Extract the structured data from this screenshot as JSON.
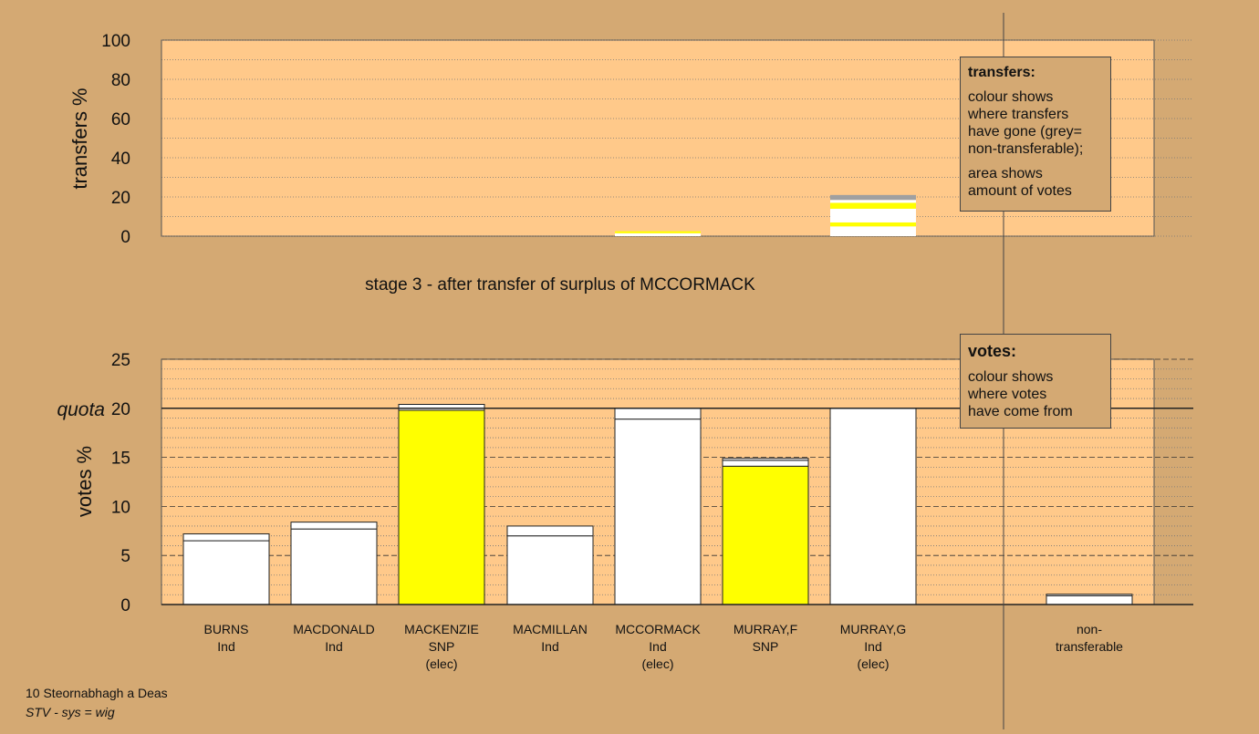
{
  "title": "stage 3 - after transfer of surplus of MCCORMACK",
  "footer": {
    "ward": "10 Steornabhagh a Deas",
    "system": "STV - sys = wig"
  },
  "colors": {
    "background": "#D4A973",
    "plot_bg": "#FFC98A",
    "white": "#FFFFFF",
    "yellow": "#FFFF00",
    "grey": "#A0A0A0"
  },
  "legend_transfers": {
    "title": "transfers:",
    "lines": [
      "colour shows",
      "where transfers",
      "have gone (grey=",
      "non-transferable);"
    ],
    "lines2": [
      "area shows",
      "amount of votes"
    ]
  },
  "legend_votes": {
    "title": "votes:",
    "lines": [
      "colour shows",
      "where votes",
      "have come from"
    ]
  },
  "candidates": [
    {
      "name": "BURNS",
      "party": "Ind",
      "status": ""
    },
    {
      "name": "MACDONALD",
      "party": "Ind",
      "status": ""
    },
    {
      "name": "MACKENZIE",
      "party": "SNP",
      "status": "(elec)"
    },
    {
      "name": "MACMILLAN",
      "party": "Ind",
      "status": ""
    },
    {
      "name": "MCCORMACK",
      "party": "Ind",
      "status": "(elec)"
    },
    {
      "name": "MURRAY,F",
      "party": "SNP",
      "status": ""
    },
    {
      "name": "MURRAY,G",
      "party": "Ind",
      "status": "(elec)"
    }
  ],
  "nontransferable_label": [
    "non-",
    "transferable"
  ],
  "chart_data": [
    {
      "type": "bar",
      "ylabel": "transfers %",
      "ylim": [
        0,
        100
      ],
      "yticks": [
        0,
        20,
        40,
        60,
        80,
        100
      ],
      "bars": [
        {
          "candidate": "MCCORMACK",
          "segments": [
            {
              "color": "white",
              "value": 1.5
            },
            {
              "color": "yellow",
              "value": 1.0
            }
          ]
        },
        {
          "candidate": "MURRAY,G",
          "segments": [
            {
              "color": "white",
              "value": 5
            },
            {
              "color": "yellow",
              "value": 2
            },
            {
              "color": "white",
              "value": 7
            },
            {
              "color": "yellow",
              "value": 3
            },
            {
              "color": "white",
              "value": 1.5
            },
            {
              "color": "grey",
              "value": 2.5
            }
          ]
        }
      ]
    },
    {
      "type": "bar",
      "ylabel": "votes %",
      "quota_label": "quota",
      "quota": 20,
      "ylim": [
        0,
        25
      ],
      "yticks": [
        0,
        5,
        10,
        15,
        20,
        25
      ],
      "bars": [
        {
          "candidate": "BURNS",
          "segments": [
            {
              "color": "white",
              "value": 6.5
            },
            {
              "color": "white",
              "value": 0.7
            }
          ]
        },
        {
          "candidate": "MACDONALD",
          "segments": [
            {
              "color": "white",
              "value": 7.7
            },
            {
              "color": "white",
              "value": 0.7
            }
          ]
        },
        {
          "candidate": "MACKENZIE",
          "segments": [
            {
              "color": "yellow",
              "value": 19.8
            },
            {
              "color": "white",
              "value": 0.6
            }
          ]
        },
        {
          "candidate": "MACMILLAN",
          "segments": [
            {
              "color": "white",
              "value": 7.0
            },
            {
              "color": "white",
              "value": 1.0
            }
          ]
        },
        {
          "candidate": "MCCORMACK",
          "segments": [
            {
              "color": "white",
              "value": 18.9
            },
            {
              "color": "white",
              "value": 1.1
            }
          ]
        },
        {
          "candidate": "MURRAY,F",
          "segments": [
            {
              "color": "yellow",
              "value": 14.1
            },
            {
              "color": "white",
              "value": 0.6
            },
            {
              "color": "white",
              "value": 0.2
            }
          ]
        },
        {
          "candidate": "MURRAY,G",
          "segments": [
            {
              "color": "white",
              "value": 20.0
            }
          ]
        }
      ],
      "nontransferable": [
        {
          "color": "white",
          "value": 0.9
        },
        {
          "color": "white",
          "value": 0.15
        }
      ]
    }
  ]
}
